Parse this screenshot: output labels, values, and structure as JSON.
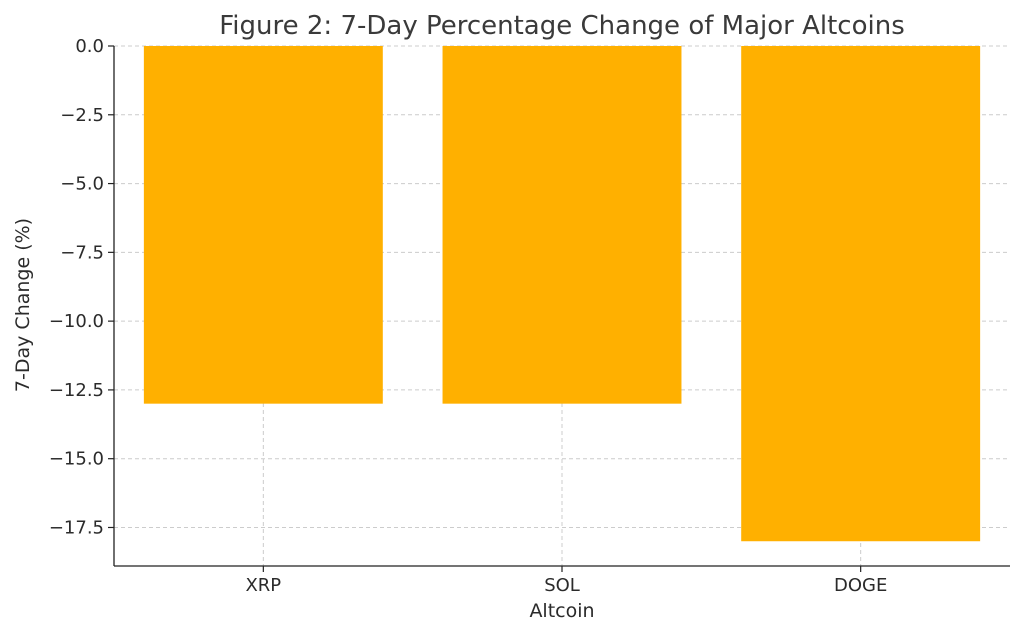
{
  "chart_data": {
    "type": "bar",
    "title": "Figure 2: 7-Day Percentage Change of Major Altcoins",
    "xlabel": "Altcoin",
    "ylabel": "7-Day Change (%)",
    "categories": [
      "XRP",
      "SOL",
      "DOGE"
    ],
    "values": [
      -13.0,
      -13.0,
      -18.0
    ],
    "ylim": [
      -18.9,
      0.0
    ],
    "yticks": [
      0.0,
      -2.5,
      -5.0,
      -7.5,
      -10.0,
      -12.5,
      -15.0,
      -17.5
    ],
    "ytick_labels": [
      "0.0",
      "−2.5",
      "−5.0",
      "−7.5",
      "−10.0",
      "−12.5",
      "−15.0",
      "−17.5"
    ],
    "grid": true,
    "bar_color": "#FFB000"
  }
}
